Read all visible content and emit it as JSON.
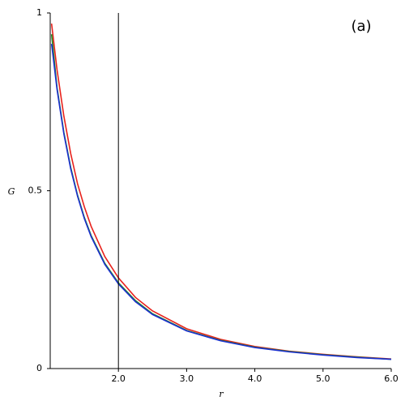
{
  "chart_data": {
    "type": "line",
    "annotation": "(a)",
    "x_label": "r",
    "y_label": "G",
    "x": [
      1.02,
      1.1,
      1.2,
      1.3,
      1.4,
      1.5,
      1.6,
      1.8,
      2.0,
      2.25,
      2.5,
      3.0,
      3.5,
      4.0,
      4.5,
      5.0,
      5.5,
      6.0
    ],
    "series": [
      {
        "color": "#e8221c",
        "values": [
          0.97,
          0.84,
          0.71,
          0.605,
          0.52,
          0.455,
          0.4,
          0.315,
          0.255,
          0.2,
          0.162,
          0.112,
          0.082,
          0.062,
          0.049,
          0.04,
          0.033,
          0.027
        ]
      },
      {
        "color": "#1f8a1f",
        "values": [
          0.94,
          0.79,
          0.664,
          0.566,
          0.488,
          0.425,
          0.374,
          0.296,
          0.241,
          0.191,
          0.154,
          0.107,
          0.079,
          0.06,
          0.048,
          0.039,
          0.032,
          0.026
        ]
      },
      {
        "color": "#1c2fd0",
        "values": [
          0.913,
          0.785,
          0.66,
          0.562,
          0.485,
          0.422,
          0.371,
          0.293,
          0.238,
          0.188,
          0.152,
          0.106,
          0.078,
          0.059,
          0.047,
          0.038,
          0.031,
          0.026
        ]
      }
    ],
    "vline": 2.0,
    "xlim": [
      1,
      6
    ],
    "xticks": [
      {
        "value": 2,
        "label": "2.0"
      },
      {
        "value": 3,
        "label": "3.0"
      },
      {
        "value": 4,
        "label": "4.0"
      },
      {
        "value": 5,
        "label": "5.0"
      },
      {
        "value": 6,
        "label": "6.0"
      }
    ],
    "ylim": [
      0,
      1
    ],
    "yticks": [
      0,
      0.5,
      1
    ]
  }
}
